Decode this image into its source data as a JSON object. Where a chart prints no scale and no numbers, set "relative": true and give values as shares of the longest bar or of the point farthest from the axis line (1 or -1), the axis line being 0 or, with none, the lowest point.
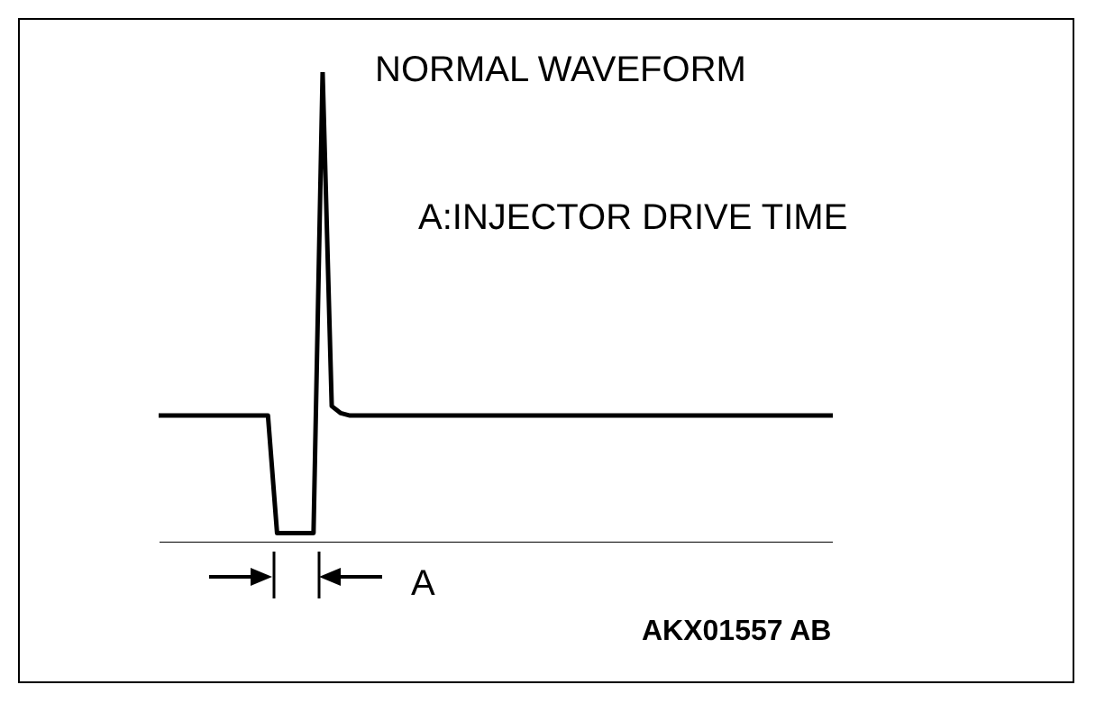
{
  "chart_data": {
    "type": "line",
    "title": "NORMAL  WAVEFORM",
    "relative": true,
    "categories": [
      null,
      null,
      null,
      null,
      null,
      null,
      null,
      null,
      null,
      null,
      null,
      null,
      null,
      null,
      null,
      null,
      null,
      null,
      null,
      null,
      null,
      null,
      null,
      null,
      null,
      null,
      null,
      null,
      null,
      null,
      null,
      null,
      null,
      null,
      null,
      null,
      null,
      null,
      null,
      null,
      null,
      null,
      null,
      null,
      null,
      null,
      null,
      null,
      null,
      null,
      null,
      null,
      null,
      null,
      null,
      null,
      null,
      null,
      null,
      null,
      null,
      null,
      null,
      null,
      null,
      null,
      null,
      null,
      null,
      null,
      null,
      null,
      null,
      null,
      null
    ],
    "series": [
      {
        "color": "#000000",
        "values": [
          0.27,
          0.27,
          0.27,
          0.27,
          0.27,
          0.27,
          0.27,
          0.27,
          0.27,
          0.27,
          0.27,
          0.27,
          0.27,
          0.02,
          0.02,
          0.02,
          0.02,
          0.02,
          1,
          0.29,
          0.275,
          0.27,
          0.27,
          0.27,
          0.27,
          0.27,
          0.27,
          0.27,
          0.27,
          0.27,
          0.27,
          0.27,
          0.27,
          0.27,
          0.27,
          0.27,
          0.27,
          0.27,
          0.27,
          0.27,
          0.27,
          0.27,
          0.27,
          0.27,
          0.27,
          0.27,
          0.27,
          0.27,
          0.27,
          0.27,
          0.27,
          0.27,
          0.27,
          0.27,
          0.27,
          0.27,
          0.27,
          0.27,
          0.27,
          0.27,
          0.27,
          0.27,
          0.27,
          0.27,
          0.27,
          0.27,
          0.27,
          0.27,
          0.27,
          0.27,
          0.27,
          0.27,
          0.27,
          0.27,
          0.27
        ]
      }
    ],
    "annotations": [
      "A:INJECTOR DRIVE TIME",
      "A",
      "AKX01557 AB"
    ]
  }
}
